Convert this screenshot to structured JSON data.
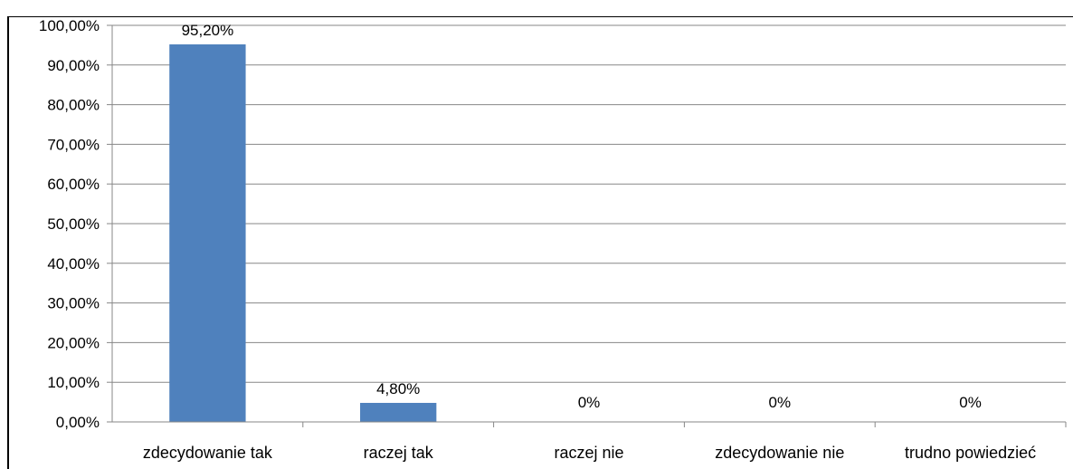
{
  "chart_data": {
    "type": "bar",
    "title": "",
    "xlabel": "",
    "ylabel": "",
    "categories": [
      "zdecydowanie tak",
      "raczej tak",
      "raczej nie",
      "zdecydowanie nie",
      "trudno powiedzieć"
    ],
    "values": [
      95.2,
      4.8,
      0,
      0,
      0
    ],
    "data_labels": [
      "95,20%",
      "4,80%",
      "0%",
      "0%",
      "0%"
    ],
    "ylim": [
      0,
      100
    ],
    "y_ticks": [
      "0,00%",
      "10,00%",
      "20,00%",
      "30,00%",
      "40,00%",
      "50,00%",
      "60,00%",
      "70,00%",
      "80,00%",
      "90,00%",
      "100,00%"
    ],
    "grid": true,
    "legend": "none",
    "bar_color": "#4f81bd"
  }
}
